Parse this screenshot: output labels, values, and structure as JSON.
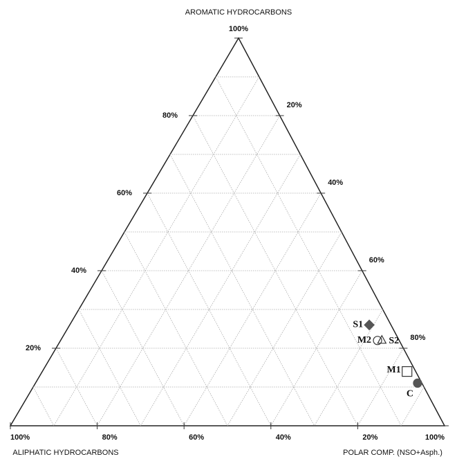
{
  "chart_data": {
    "type": "ternary",
    "axes": {
      "top": "AROMATIC HYDROCARBONS",
      "left": "ALIPHATIC HYDROCARBONS",
      "right": "POLAR COMP. (NSO+Asph.)"
    },
    "aromatic_ticks": [
      {
        "value": 20,
        "label": "20%"
      },
      {
        "value": 40,
        "label": "40%"
      },
      {
        "value": 60,
        "label": "60%"
      },
      {
        "value": 80,
        "label": "80%"
      },
      {
        "value": 100,
        "label": "100%"
      }
    ],
    "aliphatic_ticks": [
      {
        "value": 20,
        "label": "20%"
      },
      {
        "value": 40,
        "label": "40%"
      },
      {
        "value": 60,
        "label": "60%"
      },
      {
        "value": 80,
        "label": "80%"
      },
      {
        "value": 100,
        "label": "100%"
      }
    ],
    "polar_ticks": [
      {
        "value": 20,
        "label": "20%"
      },
      {
        "value": 40,
        "label": "40%"
      },
      {
        "value": 60,
        "label": "60%"
      },
      {
        "value": 80,
        "label": "80%"
      },
      {
        "value": 100,
        "label": "100%"
      }
    ],
    "grid": true,
    "grid_values": [
      10,
      20,
      30,
      40,
      50,
      60,
      70,
      80,
      90
    ],
    "points": [
      {
        "name": "S1",
        "marker": "diamond",
        "color": "#555555",
        "filled": true,
        "aromatic": 26,
        "aliphatic": 5,
        "polar": 69
      },
      {
        "name": "M2",
        "marker": "circle",
        "color": "#333333",
        "filled": false,
        "aromatic": 22,
        "aliphatic": 5,
        "polar": 73
      },
      {
        "name": "S2",
        "marker": "star",
        "color": "#333333",
        "filled": false,
        "aromatic": 22,
        "aliphatic": 4,
        "polar": 74
      },
      {
        "name": "M1",
        "marker": "square",
        "color": "#333333",
        "filled": false,
        "aromatic": 14,
        "aliphatic": 2,
        "polar": 84
      },
      {
        "name": "C",
        "marker": "circle",
        "color": "#555555",
        "filled": true,
        "aromatic": 11,
        "aliphatic": 1,
        "polar": 88
      }
    ]
  }
}
